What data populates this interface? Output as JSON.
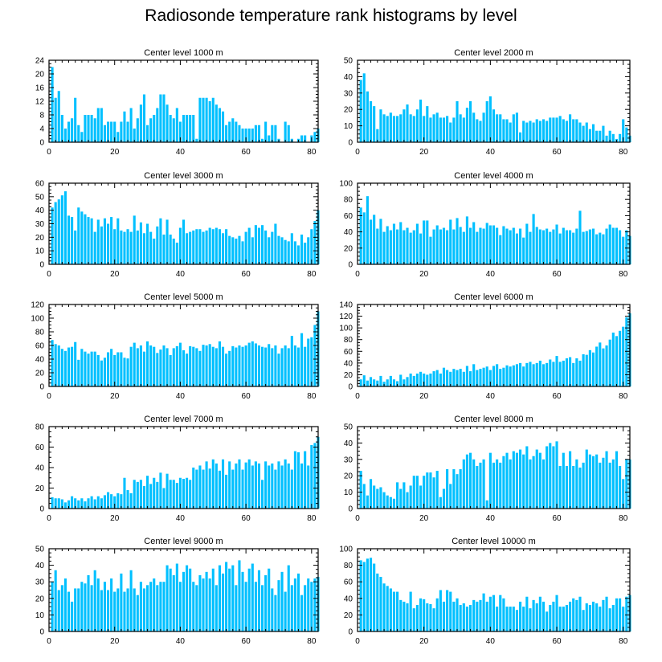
{
  "title": "Radiosonde temperature rank histograms by level",
  "bar_color": "#00c0ff",
  "chart_data": [
    {
      "type": "bar",
      "title": "Center level 1000 m",
      "xlabel": "",
      "ylabel": "",
      "xlim": [
        0,
        82
      ],
      "xticks": [
        0,
        20,
        40,
        60,
        80
      ],
      "ylim": [
        0,
        24
      ],
      "yticks": [
        0,
        4,
        8,
        12,
        16,
        20,
        24
      ],
      "x_start": 1,
      "values": [
        22,
        13,
        15,
        8,
        4,
        6,
        7,
        13,
        5,
        3,
        8,
        8,
        8,
        7,
        10,
        10,
        5,
        6,
        6,
        6,
        3,
        6,
        9,
        6,
        10,
        4,
        7,
        11,
        14,
        5,
        7,
        8,
        10,
        14,
        14,
        11,
        8,
        7,
        10,
        6,
        8,
        8,
        8,
        8,
        1,
        13,
        13,
        13,
        12,
        13,
        11,
        10,
        9,
        5,
        6,
        7,
        6,
        5,
        4,
        4,
        4,
        4,
        5,
        5,
        1,
        6,
        2,
        5,
        5,
        1,
        0,
        6,
        5,
        1,
        0,
        1,
        2,
        2,
        0,
        2,
        3,
        4
      ]
    },
    {
      "type": "bar",
      "title": "Center level 2000 m",
      "xlabel": "",
      "ylabel": "",
      "xlim": [
        0,
        82
      ],
      "xticks": [
        0,
        20,
        40,
        60,
        80
      ],
      "ylim": [
        0,
        50
      ],
      "yticks": [
        0,
        10,
        20,
        30,
        40,
        50
      ],
      "x_start": 1,
      "values": [
        38,
        42,
        31,
        25,
        22,
        8,
        20,
        17,
        16,
        18,
        16,
        16,
        17,
        20,
        23,
        17,
        16,
        20,
        26,
        16,
        22,
        15,
        17,
        18,
        15,
        15,
        16,
        12,
        15,
        25,
        17,
        15,
        21,
        25,
        18,
        14,
        13,
        18,
        25,
        28,
        20,
        17,
        17,
        14,
        14,
        12,
        17,
        18,
        6,
        13,
        12,
        13,
        12,
        14,
        13,
        14,
        13,
        15,
        15,
        15,
        16,
        14,
        13,
        17,
        14,
        14,
        12,
        10,
        12,
        8,
        11,
        7,
        7,
        10,
        4,
        7,
        5,
        2,
        5,
        14,
        9,
        4
      ]
    },
    {
      "type": "bar",
      "title": "Center level 3000 m",
      "xlabel": "",
      "ylabel": "",
      "xlim": [
        0,
        82
      ],
      "xticks": [
        0,
        20,
        40,
        60,
        80
      ],
      "ylim": [
        0,
        60
      ],
      "yticks": [
        0,
        10,
        20,
        30,
        40,
        50,
        60
      ],
      "x_start": 1,
      "values": [
        42,
        46,
        48,
        51,
        54,
        36,
        35,
        25,
        42,
        39,
        37,
        35,
        34,
        24,
        33,
        28,
        34,
        30,
        35,
        26,
        34,
        25,
        24,
        26,
        24,
        36,
        25,
        31,
        23,
        30,
        24,
        19,
        28,
        34,
        22,
        33,
        22,
        19,
        16,
        27,
        33,
        23,
        24,
        25,
        26,
        26,
        24,
        25,
        27,
        26,
        27,
        26,
        23,
        26,
        21,
        20,
        19,
        21,
        17,
        24,
        27,
        20,
        29,
        27,
        29,
        25,
        20,
        24,
        30,
        21,
        20,
        18,
        17,
        23,
        17,
        14,
        22,
        16,
        20,
        26,
        32,
        40
      ]
    },
    {
      "type": "bar",
      "title": "Center level 4000 m",
      "xlabel": "",
      "ylabel": "",
      "xlim": [
        0,
        82
      ],
      "xticks": [
        0,
        20,
        40,
        60,
        80
      ],
      "ylim": [
        0,
        100
      ],
      "yticks": [
        0,
        20,
        40,
        60,
        80,
        100
      ],
      "x_start": 1,
      "values": [
        70,
        64,
        84,
        55,
        61,
        44,
        56,
        40,
        47,
        42,
        50,
        43,
        52,
        42,
        45,
        39,
        42,
        50,
        38,
        54,
        54,
        34,
        43,
        48,
        43,
        45,
        42,
        55,
        43,
        57,
        46,
        40,
        59,
        45,
        52,
        40,
        45,
        44,
        51,
        48,
        48,
        45,
        36,
        47,
        44,
        42,
        45,
        38,
        44,
        33,
        50,
        40,
        62,
        46,
        43,
        42,
        44,
        40,
        43,
        49,
        38,
        45,
        42,
        42,
        39,
        44,
        66,
        40,
        41,
        43,
        44,
        37,
        39,
        37,
        44,
        49,
        45,
        45,
        42,
        34,
        42,
        35
      ]
    },
    {
      "type": "bar",
      "title": "Center level 5000 m",
      "xlabel": "",
      "ylabel": "",
      "xlim": [
        0,
        82
      ],
      "xticks": [
        0,
        20,
        40,
        60,
        80
      ],
      "ylim": [
        0,
        120
      ],
      "yticks": [
        0,
        20,
        40,
        60,
        80,
        100,
        120
      ],
      "x_start": 1,
      "values": [
        68,
        62,
        60,
        55,
        52,
        57,
        58,
        65,
        39,
        55,
        51,
        48,
        51,
        51,
        46,
        38,
        42,
        50,
        55,
        46,
        50,
        50,
        42,
        41,
        58,
        64,
        56,
        60,
        51,
        66,
        60,
        58,
        49,
        54,
        60,
        56,
        46,
        56,
        59,
        64,
        53,
        48,
        59,
        58,
        56,
        52,
        61,
        60,
        62,
        58,
        56,
        66,
        58,
        48,
        52,
        59,
        57,
        60,
        58,
        60,
        64,
        66,
        63,
        60,
        58,
        57,
        62,
        56,
        60,
        48,
        56,
        60,
        56,
        74,
        60,
        57,
        78,
        58,
        70,
        72,
        90,
        110
      ]
    },
    {
      "type": "bar",
      "title": "Center level 6000 m",
      "xlabel": "",
      "ylabel": "",
      "xlim": [
        0,
        82
      ],
      "xticks": [
        0,
        20,
        40,
        60,
        80
      ],
      "ylim": [
        0,
        140
      ],
      "yticks": [
        0,
        20,
        40,
        60,
        80,
        100,
        120,
        140
      ],
      "x_start": 1,
      "values": [
        12,
        19,
        10,
        16,
        12,
        10,
        18,
        8,
        12,
        18,
        12,
        9,
        20,
        12,
        16,
        22,
        18,
        22,
        25,
        22,
        20,
        22,
        26,
        28,
        22,
        32,
        28,
        25,
        30,
        28,
        30,
        25,
        35,
        26,
        38,
        28,
        30,
        32,
        34,
        28,
        35,
        38,
        30,
        32,
        36,
        34,
        36,
        38,
        40,
        34,
        40,
        42,
        38,
        40,
        44,
        38,
        40,
        46,
        42,
        52,
        42,
        44,
        48,
        50,
        40,
        48,
        44,
        55,
        54,
        62,
        58,
        68,
        75,
        65,
        70,
        80,
        92,
        86,
        95,
        102,
        118,
        125
      ]
    },
    {
      "type": "bar",
      "title": "Center level 7000 m",
      "xlabel": "",
      "ylabel": "",
      "xlim": [
        0,
        82
      ],
      "xticks": [
        0,
        20,
        40,
        60,
        80
      ],
      "ylim": [
        0,
        80
      ],
      "yticks": [
        0,
        20,
        40,
        60,
        80
      ],
      "x_start": 1,
      "values": [
        11,
        10,
        10,
        9,
        6,
        8,
        12,
        10,
        8,
        10,
        7,
        10,
        12,
        9,
        12,
        10,
        13,
        16,
        14,
        12,
        15,
        14,
        30,
        18,
        15,
        28,
        26,
        28,
        22,
        32,
        24,
        30,
        26,
        35,
        20,
        34,
        28,
        28,
        25,
        30,
        29,
        30,
        28,
        40,
        38,
        42,
        38,
        46,
        39,
        48,
        44,
        37,
        48,
        33,
        46,
        38,
        44,
        48,
        38,
        45,
        48,
        42,
        46,
        44,
        28,
        46,
        42,
        44,
        38,
        46,
        42,
        48,
        44,
        38,
        56,
        55,
        44,
        56,
        42,
        62,
        64,
        70
      ]
    },
    {
      "type": "bar",
      "title": "Center level 8000 m",
      "xlabel": "",
      "ylabel": "",
      "xlim": [
        0,
        82
      ],
      "xticks": [
        0,
        20,
        40,
        60,
        80
      ],
      "ylim": [
        0,
        50
      ],
      "yticks": [
        0,
        10,
        20,
        30,
        40,
        50
      ],
      "x_start": 1,
      "values": [
        23,
        15,
        8,
        18,
        14,
        12,
        13,
        10,
        8,
        7,
        6,
        16,
        12,
        16,
        10,
        14,
        20,
        20,
        14,
        20,
        22,
        22,
        19,
        23,
        7,
        12,
        24,
        15,
        24,
        21,
        24,
        30,
        33,
        34,
        30,
        26,
        28,
        30,
        5,
        34,
        28,
        30,
        28,
        32,
        34,
        30,
        35,
        34,
        36,
        33,
        38,
        30,
        32,
        36,
        34,
        30,
        38,
        40,
        38,
        41,
        26,
        34,
        26,
        35,
        26,
        30,
        25,
        28,
        36,
        33,
        32,
        33,
        28,
        31,
        35,
        28,
        30,
        35,
        26,
        18,
        30,
        30
      ]
    },
    {
      "type": "bar",
      "title": "Center level 9000 m",
      "xlabel": "",
      "ylabel": "",
      "xlim": [
        0,
        82
      ],
      "xticks": [
        0,
        20,
        40,
        60,
        80
      ],
      "ylim": [
        0,
        50
      ],
      "yticks": [
        0,
        10,
        20,
        30,
        40,
        50
      ],
      "x_start": 1,
      "values": [
        30,
        37,
        25,
        28,
        32,
        24,
        18,
        26,
        26,
        30,
        29,
        34,
        28,
        37,
        32,
        25,
        30,
        25,
        32,
        24,
        26,
        35,
        24,
        26,
        37,
        26,
        22,
        30,
        26,
        28,
        30,
        32,
        28,
        30,
        30,
        40,
        38,
        34,
        41,
        30,
        36,
        40,
        38,
        30,
        28,
        34,
        32,
        36,
        32,
        38,
        28,
        40,
        35,
        42,
        38,
        40,
        28,
        43,
        36,
        30,
        38,
        41,
        30,
        37,
        28,
        34,
        38,
        26,
        22,
        31,
        36,
        24,
        40,
        28,
        32,
        35,
        22,
        28,
        32,
        30,
        32,
        33
      ]
    },
    {
      "type": "bar",
      "title": "Center level 10000 m",
      "xlabel": "",
      "ylabel": "",
      "xlim": [
        0,
        82
      ],
      "xticks": [
        0,
        20,
        40,
        60,
        80
      ],
      "ylim": [
        0,
        100
      ],
      "yticks": [
        0,
        20,
        40,
        60,
        80,
        100
      ],
      "x_start": 1,
      "values": [
        86,
        84,
        88,
        89,
        82,
        70,
        66,
        58,
        55,
        52,
        48,
        48,
        38,
        36,
        34,
        48,
        28,
        32,
        40,
        39,
        34,
        33,
        28,
        40,
        50,
        36,
        50,
        48,
        36,
        40,
        32,
        34,
        30,
        32,
        38,
        36,
        38,
        46,
        36,
        42,
        44,
        30,
        44,
        40,
        30,
        30,
        30,
        26,
        36,
        30,
        42,
        28,
        38,
        34,
        42,
        36,
        24,
        32,
        36,
        44,
        30,
        30,
        32,
        36,
        40,
        38,
        42,
        26,
        34,
        32,
        36,
        34,
        30,
        38,
        42,
        28,
        32,
        40,
        40,
        30,
        42,
        44
      ]
    }
  ]
}
